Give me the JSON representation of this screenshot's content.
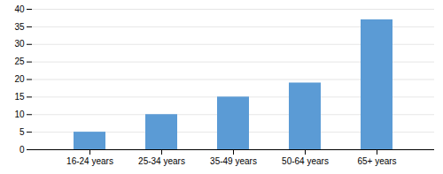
{
  "chart_data": {
    "type": "bar",
    "categories": [
      "16-24 years",
      "25-34 years",
      "35-49 years",
      "50-64 years",
      "65+ years"
    ],
    "values": [
      5,
      10,
      15,
      19,
      37
    ],
    "color": "#5B9BD5",
    "ylim": [
      0,
      40
    ],
    "yticks": [
      0,
      5,
      10,
      15,
      20,
      25,
      30,
      35,
      40
    ],
    "grid": true
  }
}
